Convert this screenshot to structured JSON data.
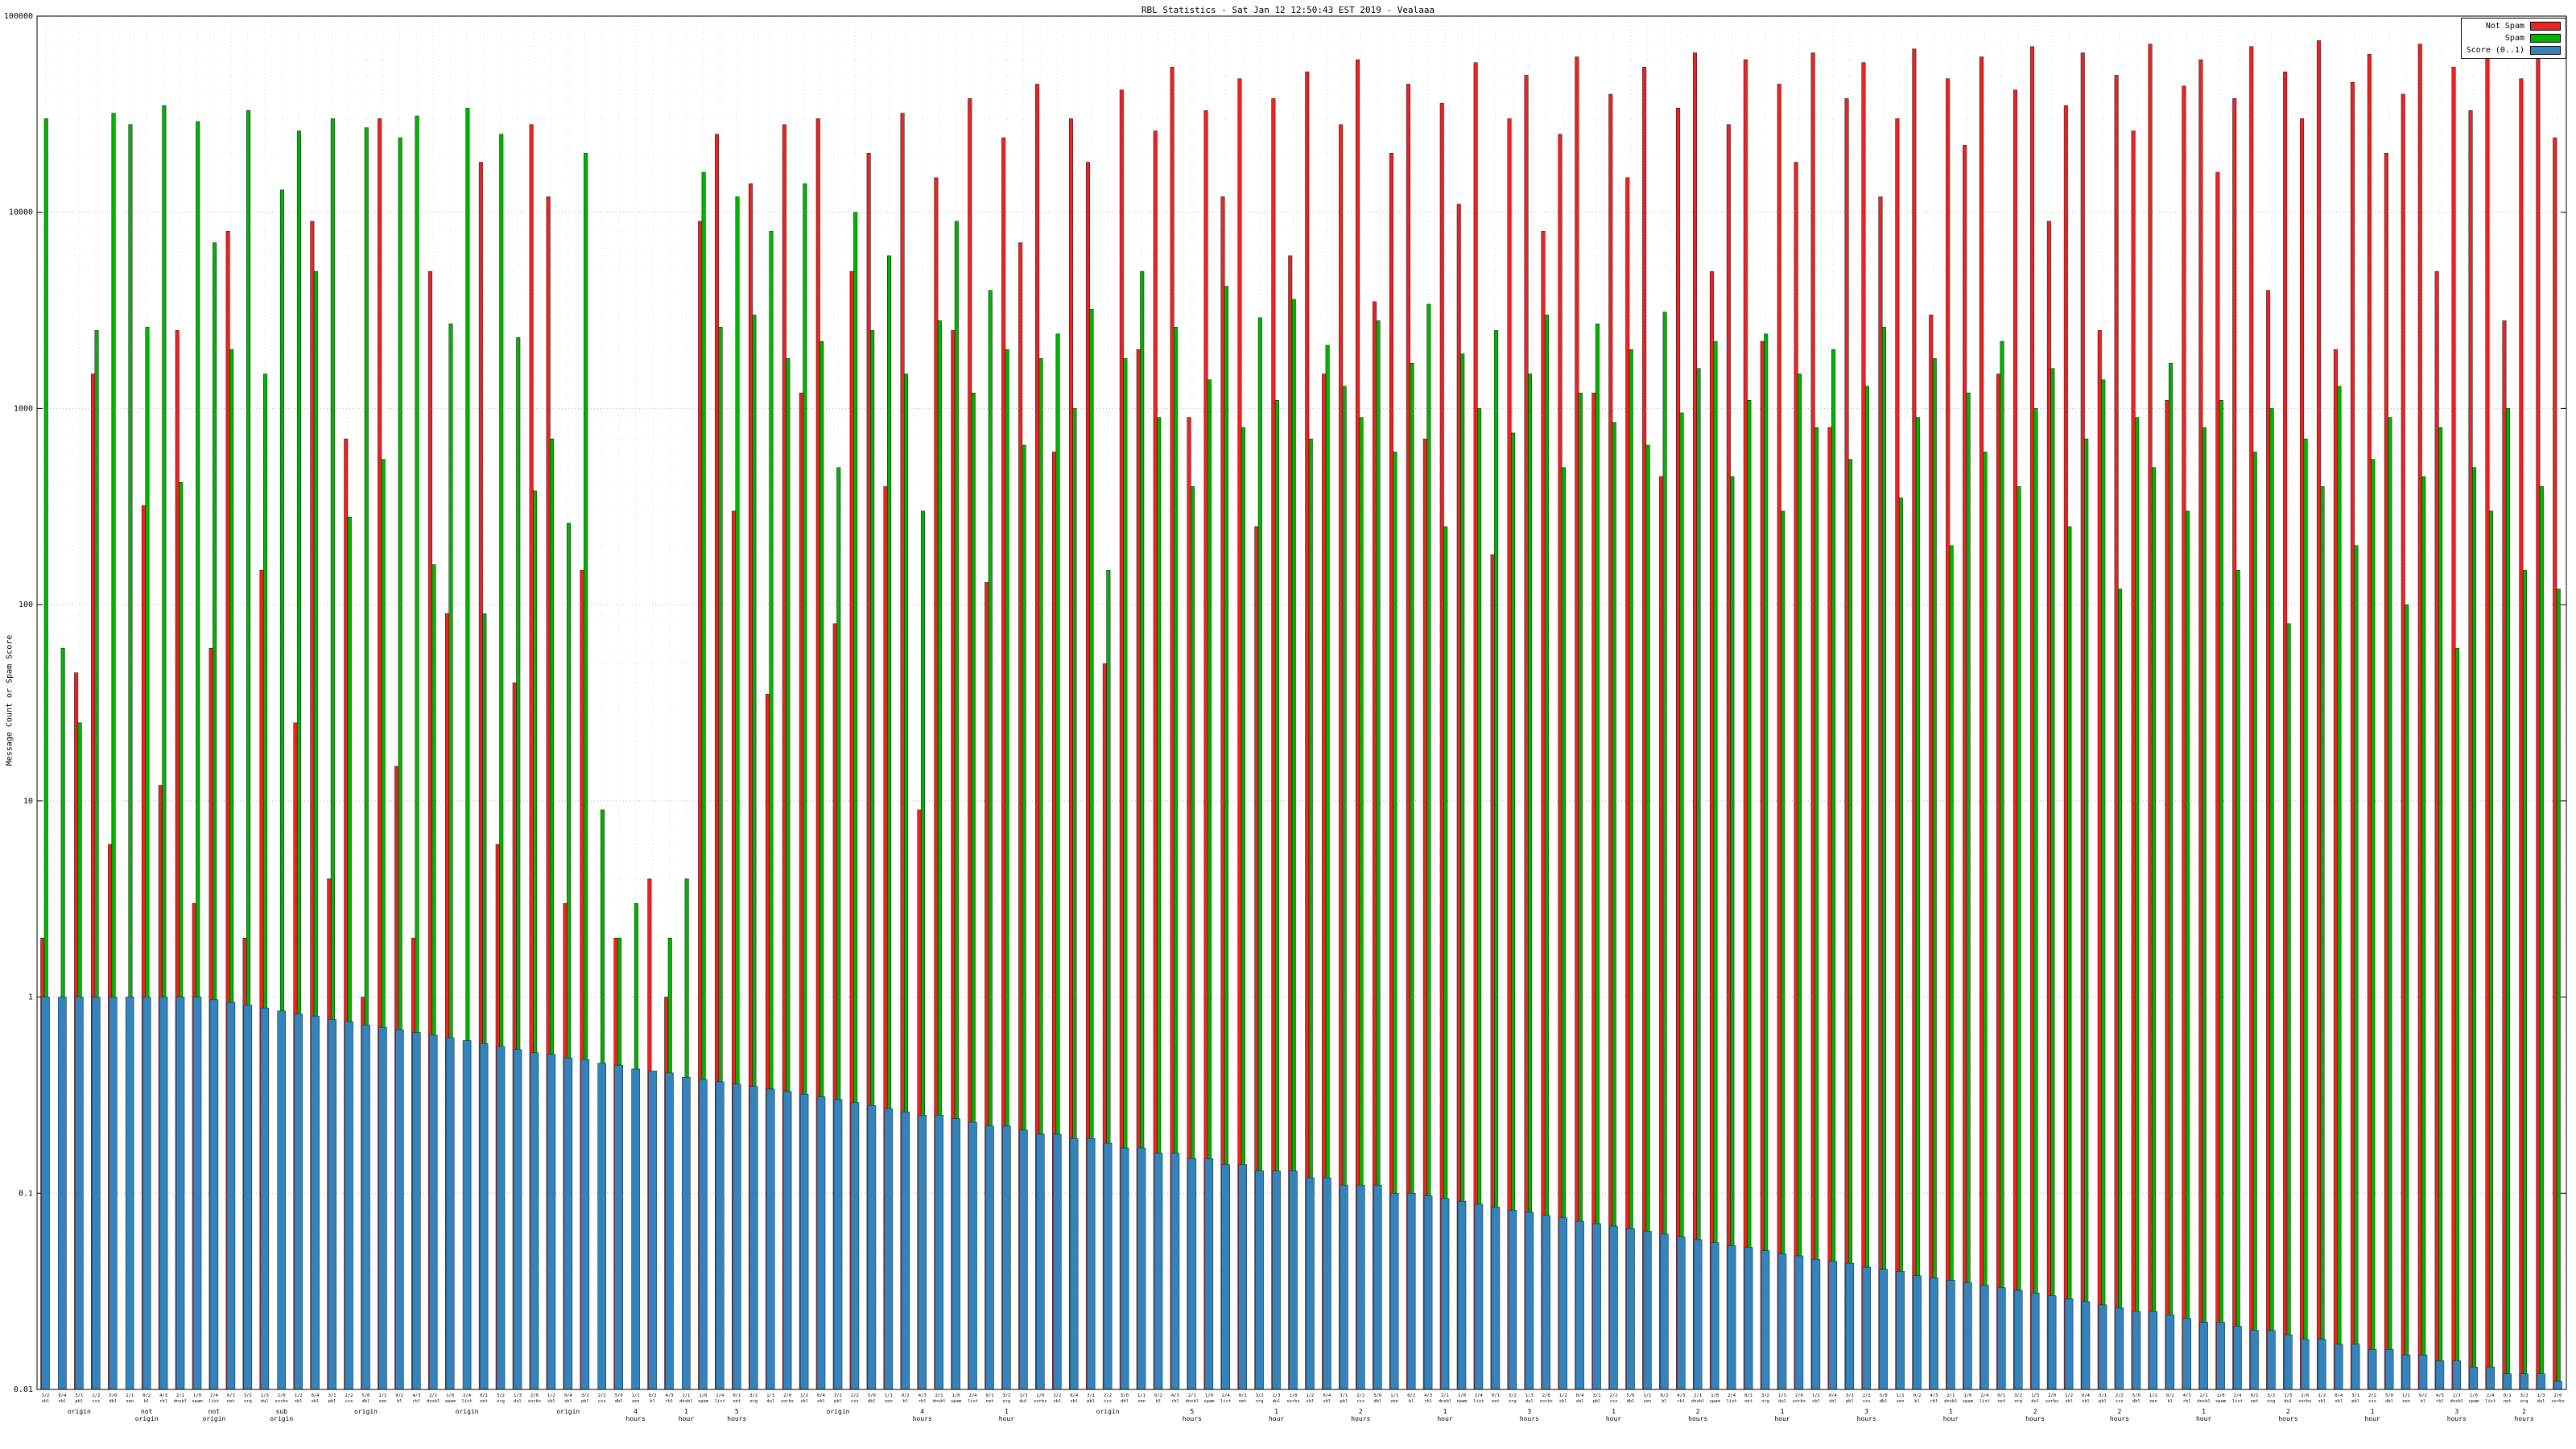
{
  "chart_data": {
    "type": "bar",
    "title": "RBL Statistics - Sat Jan 12 12:50:43 EST 2019 - Vealaaa",
    "ylabel": "Message Count or Spam Score",
    "y_scale": "log",
    "ylim": [
      0.01,
      100000
    ],
    "y_ticks": [
      "0.01",
      "0.1",
      "1",
      "10",
      "100",
      "1000",
      "10000",
      "100000"
    ],
    "grid": "dotted",
    "legend_position": "top-right",
    "series": [
      {
        "name": "Not Spam",
        "color": "#ee2222",
        "values": [
          2,
          0,
          45,
          1500,
          6,
          0,
          320,
          12,
          2500,
          3,
          60,
          8000,
          2,
          150,
          0,
          25,
          9000,
          4,
          700,
          1,
          30000,
          15,
          2,
          5000,
          90,
          0,
          18000,
          6,
          40,
          28000,
          12000,
          3,
          150,
          0,
          2,
          0,
          4,
          1,
          0,
          9000,
          25000,
          300,
          14000,
          35,
          28000,
          1200,
          30000,
          80,
          5000,
          20000,
          400,
          32000,
          9,
          15000,
          2500,
          38000,
          130,
          24000,
          7000,
          45000,
          600,
          30000,
          18000,
          50,
          42000,
          2000,
          26000,
          55000,
          900,
          33000,
          12000,
          48000,
          250,
          38000,
          6000,
          52000,
          1500,
          28000,
          60000,
          3500,
          20000,
          45000,
          700,
          36000,
          11000,
          58000,
          180,
          30000,
          50000,
          8000,
          25000,
          62000,
          1200,
          40000,
          15000,
          55000,
          450,
          34000,
          65000,
          5000,
          28000,
          60000,
          2200,
          45000,
          18000,
          65000,
          800,
          38000,
          58000,
          12000,
          30000,
          68000,
          3000,
          48000,
          22000,
          62000,
          1500,
          42000,
          70000,
          9000,
          35000,
          65000,
          2500,
          50000,
          26000,
          72000,
          1100,
          44000,
          60000,
          16000,
          38000,
          70000,
          4000,
          52000,
          30000,
          75000,
          2000,
          46000,
          64000,
          20000,
          40000,
          72000,
          5000,
          55000,
          33000,
          68000,
          2800,
          48000,
          76000,
          24000
        ]
      },
      {
        "name": "Spam",
        "color": "#00b400",
        "values": [
          30000,
          60,
          25,
          2500,
          32000,
          28000,
          2600,
          35000,
          420,
          29000,
          7000,
          2000,
          33000,
          1500,
          13000,
          26000,
          5000,
          30000,
          280,
          27000,
          550,
          24000,
          31000,
          160,
          2700,
          34000,
          90,
          25000,
          2300,
          380,
          700,
          260,
          20000,
          9,
          2,
          3,
          0,
          2,
          4,
          16000,
          2600,
          12000,
          3000,
          8000,
          1800,
          14000,
          2200,
          500,
          10000,
          2500,
          6000,
          1500,
          300,
          2800,
          9000,
          1200,
          4000,
          2000,
          650,
          1800,
          2400,
          1000,
          3200,
          150,
          1800,
          5000,
          900,
          2600,
          400,
          1400,
          4200,
          800,
          2900,
          1100,
          3600,
          700,
          2100,
          1300,
          900,
          2800,
          600,
          1700,
          3400,
          250,
          1900,
          1000,
          2500,
          750,
          1500,
          3000,
          500,
          1200,
          2700,
          850,
          2000,
          650,
          3100,
          950,
          1600,
          2200,
          450,
          1100,
          2400,
          300,
          1500,
          800,
          2000,
          550,
          1300,
          2600,
          350,
          900,
          1800,
          200,
          1200,
          600,
          2200,
          400,
          1000,
          1600,
          250,
          700,
          1400,
          120,
          900,
          500,
          1700,
          300,
          800,
          1100,
          150,
          600,
          1000,
          80,
          700,
          400,
          1300,
          200,
          550,
          900,
          100,
          450,
          800,
          60,
          500,
          300,
          1000,
          150,
          400,
          120
        ]
      },
      {
        "name": "Score (0..1)",
        "color": "#3583bb",
        "values": [
          1,
          1,
          1,
          1,
          1,
          1,
          1,
          1,
          1,
          1,
          0.97,
          0.94,
          0.91,
          0.88,
          0.85,
          0.82,
          0.8,
          0.77,
          0.75,
          0.72,
          0.7,
          0.68,
          0.66,
          0.64,
          0.62,
          0.6,
          0.58,
          0.56,
          0.54,
          0.52,
          0.51,
          0.49,
          0.48,
          0.46,
          0.45,
          0.43,
          0.42,
          0.41,
          0.39,
          0.38,
          0.37,
          0.36,
          0.35,
          0.34,
          0.33,
          0.32,
          0.31,
          0.3,
          0.29,
          0.28,
          0.27,
          0.26,
          0.25,
          0.25,
          0.24,
          0.23,
          0.22,
          0.22,
          0.21,
          0.2,
          0.2,
          0.19,
          0.19,
          0.18,
          0.17,
          0.17,
          0.16,
          0.16,
          0.15,
          0.15,
          0.14,
          0.14,
          0.13,
          0.13,
          0.13,
          0.12,
          0.12,
          0.11,
          0.11,
          0.11,
          0.1,
          0.1,
          0.097,
          0.094,
          0.091,
          0.088,
          0.085,
          0.082,
          0.08,
          0.077,
          0.075,
          0.072,
          0.07,
          0.068,
          0.066,
          0.064,
          0.062,
          0.06,
          0.058,
          0.056,
          0.054,
          0.053,
          0.051,
          0.049,
          0.048,
          0.046,
          0.045,
          0.044,
          0.042,
          0.041,
          0.04,
          0.038,
          0.037,
          0.036,
          0.035,
          0.034,
          0.033,
          0.032,
          0.031,
          0.03,
          0.029,
          0.028,
          0.027,
          0.026,
          0.025,
          0.025,
          0.024,
          0.023,
          0.022,
          0.022,
          0.021,
          0.02,
          0.02,
          0.019,
          0.018,
          0.018,
          0.017,
          0.017,
          0.016,
          0.016,
          0.015,
          0.015,
          0.014,
          0.014,
          0.013,
          0.013,
          0.012,
          0.012,
          0.012,
          0.011
        ]
      }
    ],
    "x_tick_top": [
      "1/2",
      "0/4",
      "3/1",
      "2/2",
      "5/0",
      "1/1",
      "0/2",
      "4/3",
      "2/1",
      "1/0",
      "2/4",
      "0/1",
      "3/2",
      "1/3",
      "2/0",
      "1/2",
      "0/4",
      "3/1",
      "2/2",
      "5/0",
      "1/1",
      "0/2",
      "4/3",
      "2/1",
      "1/0",
      "2/4",
      "0/1",
      "3/2",
      "1/3",
      "2/0",
      "1/2",
      "0/4",
      "3/1",
      "2/2",
      "5/0",
      "1/1",
      "0/2",
      "4/3",
      "2/1",
      "1/0",
      "2/4",
      "0/1",
      "3/2",
      "1/3",
      "2/0",
      "1/2",
      "0/4",
      "3/1",
      "2/2",
      "5/0",
      "1/1",
      "0/2",
      "4/3",
      "2/1",
      "1/0",
      "2/4",
      "0/1",
      "3/2",
      "1/3",
      "2/0",
      "1/2",
      "0/4",
      "3/1",
      "2/2",
      "5/0",
      "1/1",
      "0/2",
      "4/3",
      "2/1",
      "1/0",
      "2/4",
      "0/1",
      "3/2",
      "1/3",
      "2/0",
      "1/2",
      "0/4",
      "3/1",
      "2/2",
      "5/0",
      "1/1",
      "0/2",
      "4/3",
      "2/1",
      "1/0",
      "2/4",
      "0/1",
      "3/2",
      "1/3",
      "2/0",
      "1/2",
      "0/4",
      "3/1",
      "2/2",
      "5/0",
      "1/1",
      "0/2",
      "4/3",
      "2/1",
      "1/0",
      "2/4",
      "0/1",
      "3/2",
      "1/3",
      "2/0",
      "1/2",
      "0/4",
      "3/1",
      "2/2",
      "5/0",
      "1/1",
      "0/2",
      "4/3",
      "2/1",
      "1/0",
      "2/4",
      "0/1",
      "3/2",
      "1/3",
      "2/0",
      "1/2",
      "0/4",
      "3/1",
      "2/2",
      "5/0",
      "1/1",
      "0/2",
      "4/3",
      "2/1",
      "1/0",
      "2/4",
      "0/1",
      "3/2",
      "1/3",
      "2/0",
      "1/2",
      "0/4",
      "3/1",
      "2/2",
      "5/0",
      "1/1",
      "0/2",
      "4/3",
      "2/1",
      "1/0",
      "2/4",
      "0/1",
      "3/2",
      "1/3",
      "2/0"
    ],
    "x_tick_bottom": [
      "sbl",
      "xbl",
      "pbl",
      "css",
      "dbl",
      "zen",
      "bl",
      "rbl",
      "dnsbl",
      "spam",
      "list",
      "net",
      "org",
      "dul",
      "sorbs",
      "sbl",
      "xbl",
      "pbl",
      "css",
      "dbl",
      "zen",
      "bl",
      "rbl",
      "dnsbl",
      "spam",
      "list",
      "net",
      "org",
      "dul",
      "sorbs",
      "sbl",
      "xbl",
      "pbl",
      "css",
      "dbl",
      "zen",
      "bl",
      "rbl",
      "dnsbl",
      "spam",
      "list",
      "net",
      "org",
      "dul",
      "sorbs",
      "sbl",
      "xbl",
      "pbl",
      "css",
      "dbl",
      "zen",
      "bl",
      "rbl",
      "dnsbl",
      "spam",
      "list",
      "net",
      "org",
      "dul",
      "sorbs",
      "sbl",
      "xbl",
      "pbl",
      "css",
      "dbl",
      "zen",
      "bl",
      "rbl",
      "dnsbl",
      "spam",
      "list",
      "net",
      "org",
      "dul",
      "sorbs",
      "sbl",
      "xbl",
      "pbl",
      "css",
      "dbl",
      "zen",
      "bl",
      "rbl",
      "dnsbl",
      "spam",
      "list",
      "net",
      "org",
      "dul",
      "sorbs",
      "sbl",
      "xbl",
      "pbl",
      "css",
      "dbl",
      "zen",
      "bl",
      "rbl",
      "dnsbl",
      "spam",
      "list",
      "net",
      "org",
      "dul",
      "sorbs",
      "sbl",
      "xbl",
      "pbl",
      "css",
      "dbl",
      "zen",
      "bl",
      "rbl",
      "dnsbl",
      "spam",
      "list",
      "net",
      "org",
      "dul",
      "sorbs",
      "sbl",
      "xbl",
      "pbl",
      "css",
      "dbl",
      "zen",
      "bl",
      "rbl",
      "dnsbl",
      "spam",
      "list",
      "net",
      "org",
      "dul",
      "sorbs",
      "sbl",
      "xbl",
      "pbl",
      "css",
      "dbl",
      "zen",
      "bl",
      "rbl",
      "dnsbl",
      "spam",
      "list",
      "net",
      "org",
      "dul",
      "sorbs"
    ],
    "secondary_labels": [
      {
        "i": 2,
        "text": "origin"
      },
      {
        "i": 6,
        "text": "not origin"
      },
      {
        "i": 10,
        "text": "not origin"
      },
      {
        "i": 14,
        "text": "sub origin"
      },
      {
        "i": 19,
        "text": "origin"
      },
      {
        "i": 25,
        "text": "origin"
      },
      {
        "i": 31,
        "text": "origin"
      },
      {
        "i": 35,
        "text": "4 hours"
      },
      {
        "i": 38,
        "text": "1 hour"
      },
      {
        "i": 41,
        "text": "5 hours"
      },
      {
        "i": 47,
        "text": "origin"
      },
      {
        "i": 52,
        "text": "4 hours"
      },
      {
        "i": 57,
        "text": "1 hour"
      },
      {
        "i": 63,
        "text": "origin"
      },
      {
        "i": 68,
        "text": "5 hours"
      },
      {
        "i": 73,
        "text": "1 hour"
      },
      {
        "i": 78,
        "text": "2 hours"
      },
      {
        "i": 83,
        "text": "1 hour"
      },
      {
        "i": 88,
        "text": "3 hours"
      },
      {
        "i": 93,
        "text": "1 hour"
      },
      {
        "i": 98,
        "text": "2 hours"
      },
      {
        "i": 103,
        "text": "1 hour"
      },
      {
        "i": 108,
        "text": "3 hours"
      },
      {
        "i": 113,
        "text": "1 hour"
      },
      {
        "i": 118,
        "text": "2 hours"
      },
      {
        "i": 123,
        "text": "2 hours"
      },
      {
        "i": 128,
        "text": "1 hour"
      },
      {
        "i": 133,
        "text": "2 hours"
      },
      {
        "i": 138,
        "text": "1 hour"
      },
      {
        "i": 143,
        "text": "3 hours"
      },
      {
        "i": 147,
        "text": "2 hours"
      }
    ]
  }
}
